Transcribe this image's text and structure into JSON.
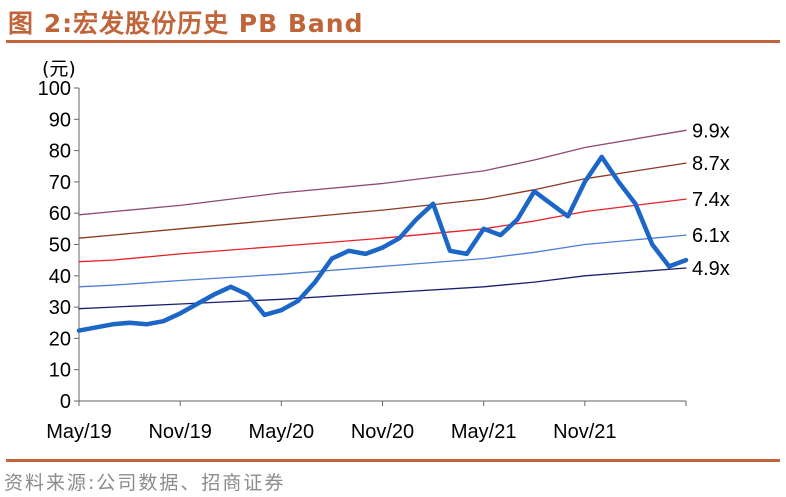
{
  "figure": {
    "title": "图 2:宏发股份历史 PB Band",
    "source": "资料来源:公司数据、招商证券"
  },
  "chart_data": {
    "type": "line",
    "ylabel": "(元)",
    "ylim": [
      0,
      100
    ],
    "yticks": [
      "0",
      "10",
      "20",
      "30",
      "40",
      "50",
      "60",
      "70",
      "80",
      "90",
      "100"
    ],
    "xticks": [
      "May/19",
      "Nov/19",
      "May/20",
      "Nov/20",
      "May/21",
      "Nov/21"
    ],
    "x_range": [
      "2019-05",
      "2022-05"
    ],
    "series": [
      {
        "name": "9.9x",
        "color": "#8e4a77",
        "x": [
          "2019-05",
          "2019-07",
          "2019-11",
          "2020-05",
          "2020-11",
          "2021-05",
          "2021-08",
          "2021-11",
          "2022-05"
        ],
        "values": [
          59.5,
          60.5,
          62.5,
          66.5,
          69.5,
          73.5,
          77,
          81,
          86.5
        ]
      },
      {
        "name": "8.7x",
        "color": "#8b3a1f",
        "x": [
          "2019-05",
          "2019-07",
          "2019-11",
          "2020-05",
          "2020-11",
          "2021-05",
          "2021-08",
          "2021-11",
          "2022-05"
        ],
        "values": [
          52,
          53,
          55,
          58,
          61,
          64.5,
          67.5,
          71,
          76
        ]
      },
      {
        "name": "7.4x",
        "color": "#e8202a",
        "x": [
          "2019-05",
          "2019-07",
          "2019-11",
          "2020-05",
          "2020-11",
          "2021-05",
          "2021-08",
          "2021-11",
          "2022-05"
        ],
        "values": [
          44.5,
          45,
          47,
          49.5,
          52,
          55,
          57.5,
          60.5,
          64.5
        ]
      },
      {
        "name": "6.1x",
        "color": "#4f7fd6",
        "x": [
          "2019-05",
          "2019-07",
          "2019-11",
          "2020-05",
          "2020-11",
          "2021-05",
          "2021-08",
          "2021-11",
          "2022-05"
        ],
        "values": [
          36.5,
          37,
          38.5,
          40.5,
          43,
          45.5,
          47.5,
          50,
          53
        ]
      },
      {
        "name": "4.9x",
        "color": "#1a1f6e",
        "x": [
          "2019-05",
          "2019-07",
          "2019-11",
          "2020-05",
          "2020-11",
          "2021-05",
          "2021-08",
          "2021-11",
          "2022-05"
        ],
        "values": [
          29.5,
          30,
          31,
          32.5,
          34.5,
          36.5,
          38,
          40,
          42.5
        ]
      },
      {
        "name": "",
        "color": "#1c66c8",
        "x": [
          "2019-05",
          "2019-06",
          "2019-07",
          "2019-08",
          "2019-09",
          "2019-10",
          "2019-11",
          "2019-12",
          "2020-01",
          "2020-02",
          "2020-03",
          "2020-04",
          "2020-05",
          "2020-06",
          "2020-07",
          "2020-08",
          "2020-09",
          "2020-10",
          "2020-11",
          "2020-12",
          "2021-01",
          "2021-02",
          "2021-03",
          "2021-04",
          "2021-05",
          "2021-06",
          "2021-07",
          "2021-08",
          "2021-09",
          "2021-10",
          "2021-11",
          "2021-12",
          "2022-01",
          "2022-02",
          "2022-03",
          "2022-04",
          "2022-05"
        ],
        "values": [
          22.5,
          23.5,
          24.5,
          25,
          24.5,
          25.5,
          28,
          31,
          34,
          36.5,
          34,
          27.5,
          29,
          32,
          38,
          45.5,
          48,
          47,
          49,
          52,
          58,
          63,
          48,
          47,
          55,
          53,
          58,
          67,
          63,
          59,
          70,
          78,
          70,
          63,
          50,
          43,
          45
        ]
      }
    ]
  }
}
